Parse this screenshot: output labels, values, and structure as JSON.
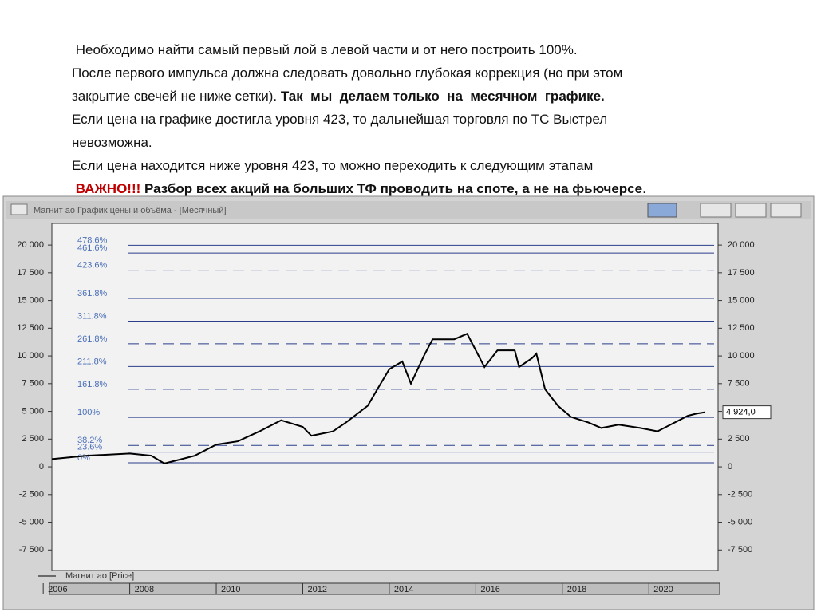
{
  "text": [
    [
      "Необходимо найти самый первый лой в левой части и от него построить 100%."
    ],
    [
      "После первого импульса должна следовать довольно глубокая коррекция (но при этом"
    ],
    [
      "закрытие свечей не ниже сетки). ",
      "Так  мы  делаем только  на  месячном  графике."
    ],
    [
      "Если цена на графике достигла уровня 423, то дальнейшая торговля по ТС Выстрел"
    ],
    [
      "невозможна."
    ],
    [
      "Если цена находится ниже уровня 423, то можно переходить к следующим этапам"
    ],
    [
      "ВАЖНО!!!",
      " Разбор всех акций на больших ТФ проводить на споте, а не на фьючерсе",
      "."
    ]
  ],
  "window_title": "Магнит ао График цены и объёма - [Месячный]",
  "chart_data": {
    "type": "line",
    "x": [
      2006.2,
      2007,
      2008,
      2008.5,
      2008.8,
      2009.5,
      2010,
      2010.5,
      2011,
      2011.5,
      2012,
      2012.2,
      2012.7,
      2013,
      2013.5,
      2013.8,
      2014,
      2014.3,
      2014.5,
      2014.8,
      2015,
      2015.5,
      2015.8,
      2016,
      2016.2,
      2016.5,
      2016.9,
      2017,
      2017.3,
      2017.4,
      2017.6,
      2017.9,
      2018.2,
      2018.6,
      2018.9,
      2019.3,
      2019.8,
      2020.2,
      2020.5,
      2020.9,
      2021.1,
      2021.3
    ],
    "series": [
      {
        "name": "Магнит ао [Price]",
        "color": "#000000",
        "values": [
          700,
          1000,
          1200,
          1000,
          300,
          1000,
          2000,
          2300,
          3200,
          4200,
          3600,
          2800,
          3200,
          4000,
          5500,
          7500,
          8800,
          9500,
          7500,
          10000,
          11500,
          11500,
          12000,
          10500,
          9000,
          10500,
          10500,
          9000,
          9800,
          10200,
          7000,
          5500,
          4500,
          4000,
          3500,
          3800,
          3500,
          3200,
          3800,
          4600,
          4800,
          4924
        ]
      }
    ],
    "last_price_label": "4 924,0",
    "xlim": [
      2006.2,
      2021.6
    ],
    "xticks": [
      2006,
      2008,
      2010,
      2012,
      2014,
      2016,
      2018,
      2020
    ],
    "ylim": [
      -9350,
      21950
    ],
    "yticks": [
      {
        "value": 20000,
        "label": "20 000"
      },
      {
        "value": 17500,
        "label": "17 500"
      },
      {
        "value": 15000,
        "label": "15 000"
      },
      {
        "value": 12500,
        "label": "12 500"
      },
      {
        "value": 10000,
        "label": "10 000"
      },
      {
        "value": 7500,
        "label": "7 500"
      },
      {
        "value": 5000,
        "label": "5 000"
      },
      {
        "value": 2500,
        "label": "2 500"
      },
      0,
      {
        "value": -2500,
        "label": "-2 500"
      },
      {
        "value": -5000,
        "label": "-5 000"
      },
      {
        "value": -7500,
        "label": "-7 500"
      }
    ],
    "fib_levels": [
      {
        "value": 19980,
        "label": "478.6%",
        "dashed": false
      },
      {
        "value": 19280,
        "label": "461.6%",
        "dashed": false
      },
      {
        "value": 17728,
        "label": "423.6%",
        "dashed": true
      },
      {
        "value": 15190,
        "label": "361.8%",
        "dashed": false
      },
      {
        "value": 13140,
        "label": "311.8%",
        "dashed": false
      },
      {
        "value": 11090,
        "label": "261.8%",
        "dashed": true
      },
      {
        "value": 9040,
        "label": "211.8%",
        "dashed": false
      },
      {
        "value": 6994,
        "label": "161.8%",
        "dashed": true
      },
      {
        "value": 4460,
        "label": "100%",
        "dashed": false
      },
      {
        "value": 1926,
        "label": "38.2%",
        "dashed": true
      },
      {
        "value": 1328,
        "label": "23.6%",
        "dashed": false
      },
      {
        "value": 360,
        "label": "0%",
        "dashed": false
      }
    ]
  }
}
